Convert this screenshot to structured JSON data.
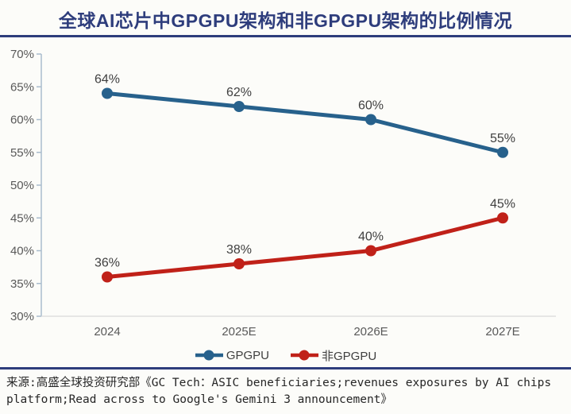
{
  "title": "全球AI芯片中GPGPU架构和非GPGPU架构的比例情况",
  "colors": {
    "accent_navy": "#2E3D7C",
    "axis_line": "#A9BCCD",
    "baseline": "#D9D9D9",
    "tick_label": "#595959",
    "data_label": "#404040",
    "background": "#FCFCF9"
  },
  "chart_data": {
    "type": "line",
    "categories": [
      "2024",
      "2025E",
      "2026E",
      "2027E"
    ],
    "series": [
      {
        "name": "GPGPU",
        "color": "#27618C",
        "values": [
          64,
          62,
          60,
          55
        ],
        "labels": [
          "64%",
          "62%",
          "60%",
          "55%"
        ]
      },
      {
        "name": "非GPGPU",
        "color": "#C02119",
        "values": [
          36,
          38,
          40,
          45
        ],
        "labels": [
          "36%",
          "38%",
          "40%",
          "45%"
        ]
      }
    ],
    "ylim": [
      30,
      70
    ],
    "ytick_step": 5,
    "ytick_labels": [
      "30%",
      "35%",
      "40%",
      "45%",
      "50%",
      "55%",
      "60%",
      "65%",
      "70%"
    ],
    "grid": false,
    "legend_position": "bottom",
    "xlabel": "",
    "ylabel": ""
  },
  "legend": {
    "items": [
      {
        "label": "GPGPU"
      },
      {
        "label": "非GPGPU"
      }
    ]
  },
  "source": "来源:高盛全球投资研究部《GC Tech：ASIC beneficiaries;revenues exposures by AI chips platform;Read across to Google's Gemini 3 announcement》"
}
